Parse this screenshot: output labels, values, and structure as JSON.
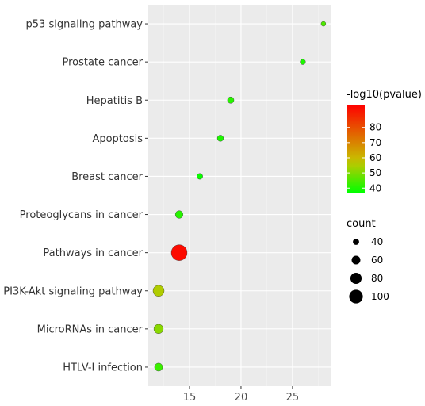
{
  "chart_data": {
    "type": "scatter",
    "xlabel": "",
    "ylabel": "",
    "xlim": [
      11,
      28.7
    ],
    "x_ticks": [
      "15",
      "20",
      "25"
    ],
    "x_tick_values": [
      15,
      20,
      25
    ],
    "grid": true,
    "categories": [
      "p53 signaling pathway",
      "Prostate cancer",
      "Hepatitis B",
      "Apoptosis",
      "Breast cancer",
      "Proteoglycans in cancer",
      "Pathways in cancer",
      "PI3K-Akt signaling pathway",
      "MicroRNAs in cancer",
      "HTLV-I infection"
    ],
    "points": [
      {
        "category": "p53 signaling pathway",
        "x": 28,
        "count": 28,
        "pvalue_log": 45
      },
      {
        "category": "Prostate cancer",
        "x": 26,
        "count": 33,
        "pvalue_log": 40
      },
      {
        "category": "Hepatitis B",
        "x": 19,
        "count": 42,
        "pvalue_log": 41
      },
      {
        "category": "Apoptosis",
        "x": 18,
        "count": 40,
        "pvalue_log": 40
      },
      {
        "category": "Breast cancer",
        "x": 16,
        "count": 37,
        "pvalue_log": 38
      },
      {
        "category": "Proteoglycans in cancer",
        "x": 14,
        "count": 52,
        "pvalue_log": 41
      },
      {
        "category": "Pathways in cancer",
        "x": 14,
        "count": 118,
        "pvalue_log": 93
      },
      {
        "category": "PI3K-Akt signaling pathway",
        "x": 12,
        "count": 80,
        "pvalue_log": 55
      },
      {
        "category": "MicroRNAs in cancer",
        "x": 12,
        "count": 66,
        "pvalue_log": 51
      },
      {
        "category": "HTLV-I infection",
        "x": 12,
        "count": 55,
        "pvalue_log": 43
      }
    ],
    "color_legend": {
      "title": "-log10(pvalue)",
      "ticks": [
        "40",
        "50",
        "60",
        "70",
        "80"
      ],
      "tick_values": [
        40,
        50,
        60,
        70,
        80
      ],
      "min": 37,
      "max": 95,
      "low_color": "#00ff00",
      "mid_color": "#c6c600",
      "high_color": "#ff0000"
    },
    "size_legend": {
      "title": "count",
      "labels": [
        "40",
        "60",
        "80",
        "100"
      ],
      "values": [
        40,
        60,
        80,
        100
      ]
    },
    "legend_placement": "right"
  },
  "colors": {
    "panel_bg": "#ebebeb",
    "grid_major": "#ffffff",
    "grid_minor": "#f4f4f4",
    "point_stroke": "#333333"
  }
}
